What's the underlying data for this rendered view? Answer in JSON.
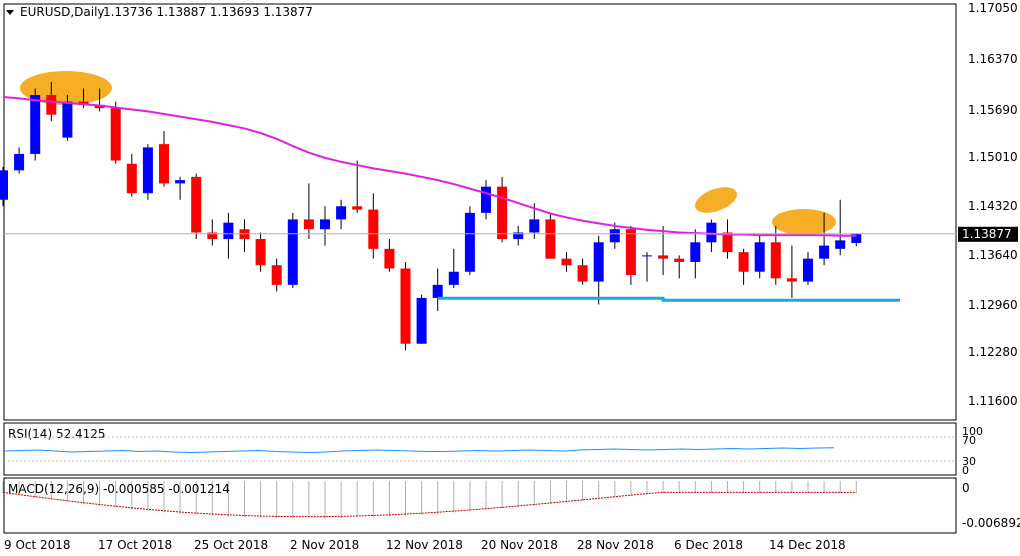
{
  "header": {
    "symbol": "EURUSD,Daily",
    "ohlc": "1.13736 1.13887 1.13693 1.13877"
  },
  "price_axis": {
    "ticks": [
      "1.17050",
      "1.16370",
      "1.15690",
      "1.15010",
      "1.14320",
      "1.13640",
      "1.12960",
      "1.12280",
      "1.11600"
    ],
    "current": "1.13877"
  },
  "date_axis": {
    "labels": [
      "9 Oct 2018",
      "17 Oct 2018",
      "25 Oct 2018",
      "2 Nov 2018",
      "12 Nov 2018",
      "20 Nov 2018",
      "28 Nov 2018",
      "6 Dec 2018",
      "14 Dec 2018"
    ]
  },
  "rsi": {
    "label": "RSI(14) 52.4125",
    "ticks": [
      "100",
      "70",
      "30",
      "0"
    ],
    "values": [
      46,
      47,
      48,
      46,
      44,
      45,
      46,
      47,
      45,
      46,
      44,
      43,
      44,
      45,
      46,
      47,
      45,
      44,
      43,
      44,
      46,
      47,
      48,
      47,
      46,
      45,
      45,
      46,
      47,
      46,
      47,
      48,
      47,
      46,
      48,
      49,
      50,
      49,
      48,
      49,
      50,
      49,
      50,
      51,
      50,
      51,
      52,
      51,
      52,
      52.41
    ]
  },
  "macd": {
    "label": "MACD(12,26,9) -0.000585 -0.001214",
    "ticks": [
      "0",
      "-0.006892"
    ]
  },
  "colors": {
    "bull": "#0000ff",
    "bear": "#ff0000",
    "ma": "#e020e0",
    "support": "#1ea8dc",
    "highlight": "#f5a000",
    "rsi_line": "#1e90ff",
    "macd_bars": "#b0b0b0",
    "macd_signal": "#c00000"
  },
  "chart_data": {
    "type": "candlestick",
    "symbol": "EURUSD",
    "timeframe": "Daily",
    "ylim": [
      1.1131,
      1.1733
    ],
    "candles": [
      [
        1.144,
        1.149,
        1.143,
        1.1485
      ],
      [
        1.1485,
        1.152,
        1.148,
        1.151
      ],
      [
        1.151,
        1.161,
        1.15,
        1.16
      ],
      [
        1.16,
        1.162,
        1.156,
        1.157
      ],
      [
        1.1535,
        1.16,
        1.153,
        1.159
      ],
      [
        1.159,
        1.161,
        1.158,
        1.1585
      ],
      [
        1.1585,
        1.161,
        1.1575,
        1.158
      ],
      [
        1.158,
        1.159,
        1.1495,
        1.15
      ],
      [
        1.1495,
        1.151,
        1.1445,
        1.145
      ],
      [
        1.145,
        1.1525,
        1.144,
        1.152
      ],
      [
        1.1525,
        1.1545,
        1.146,
        1.1465
      ],
      [
        1.1465,
        1.1475,
        1.144,
        1.147
      ],
      [
        1.1475,
        1.148,
        1.138,
        1.139
      ],
      [
        1.139,
        1.141,
        1.137,
        1.138
      ],
      [
        1.138,
        1.142,
        1.135,
        1.1405
      ],
      [
        1.1395,
        1.141,
        1.136,
        1.138
      ],
      [
        1.138,
        1.139,
        1.133,
        1.134
      ],
      [
        1.134,
        1.135,
        1.13,
        1.131
      ],
      [
        1.131,
        1.142,
        1.1305,
        1.141
      ],
      [
        1.141,
        1.1465,
        1.138,
        1.1395
      ],
      [
        1.1395,
        1.143,
        1.137,
        1.141
      ],
      [
        1.141,
        1.144,
        1.1395,
        1.143
      ],
      [
        1.143,
        1.15,
        1.142,
        1.1425
      ],
      [
        1.1425,
        1.145,
        1.135,
        1.1365
      ],
      [
        1.1365,
        1.138,
        1.133,
        1.1335
      ],
      [
        1.1335,
        1.1345,
        1.121,
        1.122
      ],
      [
        1.122,
        1.1295,
        1.122,
        1.129
      ],
      [
        1.129,
        1.1335,
        1.127,
        1.131
      ],
      [
        1.131,
        1.1365,
        1.1305,
        1.133
      ],
      [
        1.133,
        1.143,
        1.1325,
        1.142
      ],
      [
        1.142,
        1.147,
        1.141,
        1.146
      ],
      [
        1.146,
        1.1475,
        1.1375,
        1.138
      ],
      [
        1.138,
        1.14,
        1.137,
        1.139
      ],
      [
        1.139,
        1.1435,
        1.138,
        1.141
      ],
      [
        1.141,
        1.142,
        1.135,
        1.135
      ],
      [
        1.135,
        1.136,
        1.133,
        1.134
      ],
      [
        1.134,
        1.135,
        1.131,
        1.1315
      ],
      [
        1.1315,
        1.1385,
        1.128,
        1.1375
      ],
      [
        1.1375,
        1.1405,
        1.1365,
        1.1395
      ],
      [
        1.1395,
        1.14,
        1.131,
        1.1325
      ],
      [
        1.1355,
        1.136,
        1.1315,
        1.1355
      ],
      [
        1.1355,
        1.14,
        1.1325,
        1.135
      ],
      [
        1.135,
        1.1355,
        1.132,
        1.1345
      ],
      [
        1.1345,
        1.1395,
        1.132,
        1.1375
      ],
      [
        1.1375,
        1.141,
        1.136,
        1.1405
      ],
      [
        1.139,
        1.141,
        1.135,
        1.136
      ],
      [
        1.136,
        1.1365,
        1.131,
        1.133
      ],
      [
        1.133,
        1.1385,
        1.132,
        1.1375
      ],
      [
        1.1375,
        1.14,
        1.131,
        1.132
      ],
      [
        1.132,
        1.137,
        1.129,
        1.1315
      ],
      [
        1.1315,
        1.136,
        1.131,
        1.135
      ],
      [
        1.135,
        1.142,
        1.134,
        1.137
      ],
      [
        1.1365,
        1.144,
        1.1355,
        1.1378
      ],
      [
        1.1374,
        1.1389,
        1.1369,
        1.1388
      ]
    ],
    "ma_line": [
      1.1597,
      1.1595,
      1.1592,
      1.159,
      1.1588,
      1.1586,
      1.1584,
      1.1581,
      1.1578,
      1.1575,
      1.1571,
      1.1567,
      1.1563,
      1.1559,
      1.1554,
      1.1549,
      1.1542,
      1.1533,
      1.1522,
      1.1512,
      1.1504,
      1.1498,
      1.1493,
      1.1488,
      1.1484,
      1.148,
      1.1475,
      1.147,
      1.1464,
      1.1457,
      1.145,
      1.1443,
      1.1435,
      1.1427,
      1.1419,
      1.1413,
      1.1408,
      1.1404,
      1.14,
      1.1397,
      1.1394,
      1.1392,
      1.139,
      1.1389,
      1.1388,
      1.1387,
      1.1387,
      1.1386,
      1.1386,
      1.1386,
      1.1386,
      1.1386,
      1.1385,
      1.1385
    ],
    "support_level": 1.1288,
    "xlabels": [
      "9 Oct 2018",
      "17 Oct 2018",
      "25 Oct 2018",
      "2 Nov 2018",
      "12 Nov 2018",
      "20 Nov 2018",
      "28 Nov 2018",
      "6 Dec 2018",
      "14 Dec 2018"
    ],
    "ylabel": "",
    "title": "EURUSD,Daily"
  }
}
